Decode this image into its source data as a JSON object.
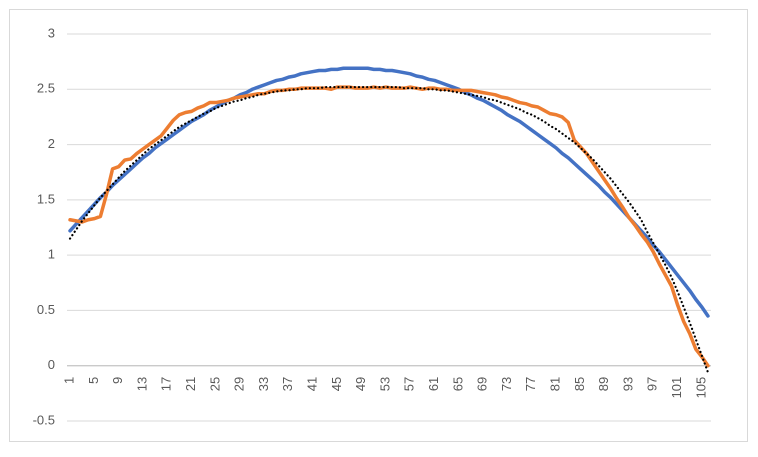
{
  "chart_data": {
    "type": "line",
    "categories": [
      1,
      null,
      null,
      null,
      5,
      null,
      null,
      null,
      9,
      null,
      null,
      null,
      13,
      null,
      null,
      null,
      17,
      null,
      null,
      null,
      21,
      null,
      null,
      null,
      25,
      null,
      null,
      null,
      29,
      null,
      null,
      null,
      33,
      null,
      null,
      null,
      37,
      null,
      null,
      null,
      41,
      null,
      null,
      null,
      45,
      null,
      null,
      null,
      49,
      null,
      null,
      null,
      53,
      null,
      null,
      null,
      57,
      null,
      null,
      null,
      61,
      null,
      null,
      null,
      65,
      null,
      null,
      null,
      69,
      null,
      null,
      null,
      73,
      null,
      null,
      null,
      77,
      null,
      null,
      null,
      81,
      null,
      null,
      null,
      85,
      null,
      null,
      null,
      89,
      null,
      null,
      null,
      93,
      null,
      null,
      null,
      97,
      null,
      null,
      null,
      101,
      null,
      null,
      null,
      105,
      null
    ],
    "series": [
      {
        "color": "#4472c4",
        "style": "solid",
        "values": [
          1.22,
          1.28,
          1.34,
          1.4,
          1.46,
          1.52,
          1.57,
          1.63,
          1.68,
          1.73,
          1.78,
          1.83,
          1.88,
          1.92,
          1.97,
          2.01,
          2.05,
          2.09,
          2.13,
          2.17,
          2.21,
          2.24,
          2.27,
          2.31,
          2.34,
          2.37,
          2.4,
          2.42,
          2.45,
          2.47,
          2.5,
          2.52,
          2.54,
          2.56,
          2.58,
          2.59,
          2.61,
          2.62,
          2.64,
          2.65,
          2.66,
          2.67,
          2.67,
          2.68,
          2.68,
          2.69,
          2.69,
          2.69,
          2.69,
          2.69,
          2.68,
          2.68,
          2.67,
          2.67,
          2.66,
          2.65,
          2.64,
          2.62,
          2.61,
          2.59,
          2.58,
          2.56,
          2.54,
          2.52,
          2.5,
          2.47,
          2.45,
          2.42,
          2.4,
          2.37,
          2.34,
          2.31,
          2.27,
          2.24,
          2.21,
          2.17,
          2.13,
          2.09,
          2.05,
          2.01,
          1.97,
          1.92,
          1.88,
          1.83,
          1.78,
          1.73,
          1.68,
          1.63,
          1.57,
          1.52,
          1.46,
          1.4,
          1.34,
          1.28,
          1.22,
          1.16,
          1.09,
          1.03,
          0.96,
          0.89,
          0.82,
          0.75,
          0.68,
          0.6,
          0.53,
          0.45
        ]
      },
      {
        "color": "#ed7d31",
        "style": "solid",
        "values": [
          1.32,
          1.31,
          1.3,
          1.32,
          1.33,
          1.35,
          1.55,
          1.78,
          1.8,
          1.86,
          1.87,
          1.92,
          1.96,
          2.0,
          2.04,
          2.08,
          2.15,
          2.22,
          2.27,
          2.29,
          2.3,
          2.33,
          2.35,
          2.38,
          2.38,
          2.39,
          2.4,
          2.42,
          2.43,
          2.44,
          2.45,
          2.46,
          2.46,
          2.48,
          2.49,
          2.49,
          2.5,
          2.5,
          2.51,
          2.51,
          2.51,
          2.51,
          2.51,
          2.5,
          2.52,
          2.52,
          2.52,
          2.51,
          2.51,
          2.51,
          2.52,
          2.51,
          2.52,
          2.51,
          2.51,
          2.51,
          2.52,
          2.51,
          2.5,
          2.51,
          2.51,
          2.5,
          2.5,
          2.49,
          2.49,
          2.49,
          2.49,
          2.48,
          2.47,
          2.46,
          2.45,
          2.43,
          2.42,
          2.4,
          2.38,
          2.37,
          2.35,
          2.34,
          2.31,
          2.28,
          2.27,
          2.25,
          2.2,
          2.04,
          1.98,
          1.92,
          1.84,
          1.76,
          1.68,
          1.6,
          1.51,
          1.43,
          1.34,
          1.27,
          1.19,
          1.12,
          1.03,
          0.92,
          0.82,
          0.72,
          0.55,
          0.4,
          0.29,
          0.15,
          0.08,
          0.0
        ]
      },
      {
        "color": "#000000",
        "style": "dotted",
        "values": [
          1.15,
          1.23,
          1.31,
          1.38,
          1.45,
          1.52,
          1.58,
          1.64,
          1.7,
          1.76,
          1.81,
          1.86,
          1.91,
          1.96,
          2.0,
          2.04,
          2.08,
          2.12,
          2.16,
          2.19,
          2.22,
          2.25,
          2.28,
          2.3,
          2.33,
          2.35,
          2.37,
          2.39,
          2.4,
          2.42,
          2.43,
          2.45,
          2.46,
          2.47,
          2.48,
          2.49,
          2.49,
          2.5,
          2.5,
          2.51,
          2.51,
          2.51,
          2.52,
          2.52,
          2.52,
          2.52,
          2.52,
          2.52,
          2.52,
          2.52,
          2.52,
          2.52,
          2.52,
          2.52,
          2.52,
          2.51,
          2.51,
          2.51,
          2.51,
          2.5,
          2.5,
          2.49,
          2.49,
          2.48,
          2.47,
          2.46,
          2.45,
          2.44,
          2.43,
          2.41,
          2.4,
          2.38,
          2.36,
          2.34,
          2.32,
          2.29,
          2.27,
          2.24,
          2.21,
          2.17,
          2.14,
          2.1,
          2.06,
          2.02,
          1.97,
          1.92,
          1.87,
          1.81,
          1.75,
          1.69,
          1.62,
          1.55,
          1.48,
          1.4,
          1.32,
          1.21,
          1.11,
          1.01,
          0.91,
          0.8,
          0.67,
          0.53,
          0.39,
          0.24,
          0.09,
          -0.06
        ]
      }
    ],
    "ylim": [
      -0.5,
      3
    ],
    "yticks": [
      -0.5,
      0,
      0.5,
      1,
      1.5,
      2,
      2.5,
      3
    ],
    "grid": true
  }
}
